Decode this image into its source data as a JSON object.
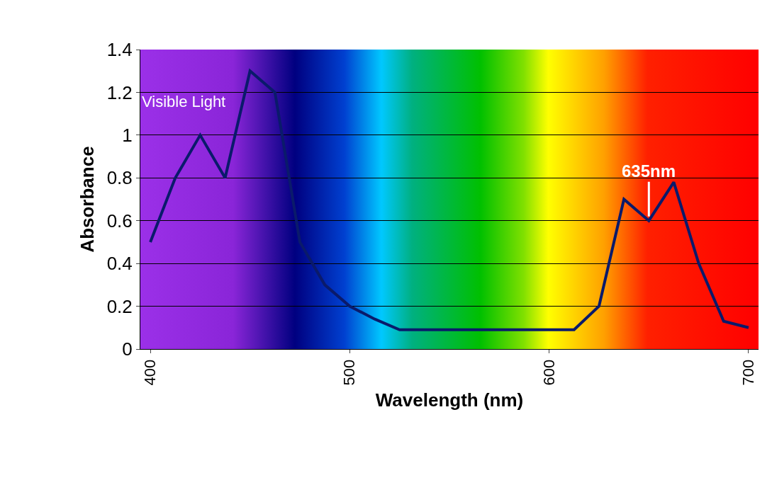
{
  "chart_data": {
    "type": "line",
    "xlabel": "Wavelength (nm)",
    "ylabel": "Absorbance",
    "x": [
      400,
      412.5,
      425,
      437.5,
      450,
      462.5,
      475,
      487.5,
      500,
      512.5,
      525,
      537.5,
      550,
      562.5,
      575,
      587.5,
      600,
      612.5,
      625,
      637.5,
      650,
      662.5,
      675,
      687.5,
      700
    ],
    "series": [
      {
        "color": "#0a1a6b",
        "values": [
          0.5,
          0.8,
          1.0,
          0.8,
          1.3,
          1.2,
          0.5,
          0.3,
          0.2,
          0.14,
          0.09,
          0.09,
          0.09,
          0.09,
          0.09,
          0.09,
          0.09,
          0.09,
          0.2,
          0.7,
          0.6,
          0.78,
          0.4,
          0.13,
          0.1
        ]
      }
    ],
    "xlim": [
      395,
      705
    ],
    "xticks": [
      400,
      500,
      600,
      700
    ],
    "ylim": [
      0,
      1.4
    ],
    "yticks": [
      0,
      0.2,
      0.4,
      0.6,
      0.8,
      1,
      1.2,
      1.4
    ],
    "grid": "y",
    "marker": "none",
    "line_style": "solid",
    "annotations": [
      "Visible Light",
      {
        "text": "635nm",
        "x": 650,
        "y": 0.6
      }
    ]
  }
}
